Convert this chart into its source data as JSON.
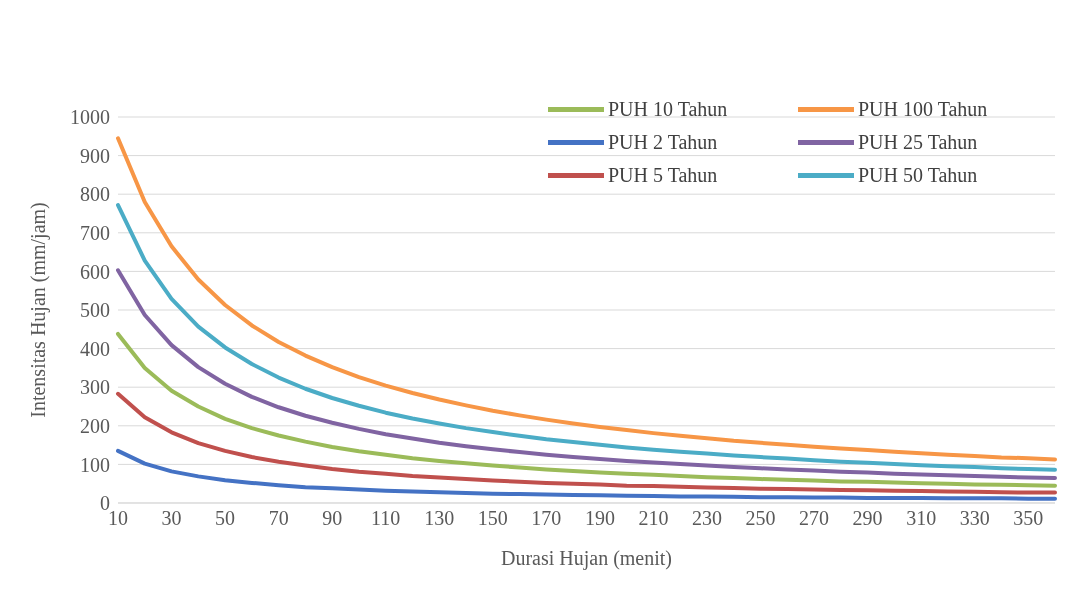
{
  "chart_data": {
    "type": "line",
    "xlabel": "Durasi Hujan (menit)",
    "ylabel": "Intensitas Hujan (mm/jam)",
    "categories": [
      "10",
      null,
      "30",
      null,
      "50",
      null,
      "70",
      null,
      "90",
      null,
      "110",
      null,
      "130",
      null,
      "150",
      null,
      "170",
      null,
      "190",
      null,
      "210",
      null,
      "230",
      null,
      "250",
      null,
      "270",
      null,
      "290",
      null,
      "310",
      null,
      "330",
      null,
      "350",
      null
    ],
    "ylim": [
      0,
      1000
    ],
    "yticks": [
      0,
      100,
      200,
      300,
      400,
      500,
      600,
      700,
      800,
      900,
      1000
    ],
    "grid": "y",
    "legend": "top right",
    "marker": "none",
    "line_style": "solid",
    "series": [
      {
        "name": "PUH 2 Tahun",
        "color": "#4472c4",
        "values": [
          135,
          102,
          82,
          69,
          59,
          52,
          46,
          41,
          38,
          35,
          32,
          30,
          28,
          26,
          24,
          23,
          22,
          21,
          20,
          19,
          18,
          17,
          17,
          16,
          15,
          15,
          14,
          14,
          13,
          13,
          13,
          12,
          12,
          12,
          11,
          11
        ]
      },
      {
        "name": "PUH 5 Tahun",
        "color": "#c0504d",
        "values": [
          283,
          222,
          183,
          155,
          135,
          119,
          107,
          97,
          88,
          81,
          76,
          70,
          66,
          62,
          58,
          55,
          52,
          50,
          48,
          45,
          44,
          42,
          40,
          39,
          37,
          36,
          35,
          34,
          33,
          32,
          31,
          30,
          29,
          28,
          27,
          27
        ]
      },
      {
        "name": "PUH 10 Tahun",
        "color": "#9bbb59",
        "values": [
          438,
          350,
          291,
          250,
          218,
          194,
          175,
          159,
          145,
          134,
          125,
          116,
          109,
          103,
          97,
          92,
          87,
          83,
          79,
          76,
          73,
          70,
          67,
          65,
          62,
          60,
          58,
          56,
          55,
          53,
          51,
          50,
          48,
          47,
          46,
          45
        ]
      },
      {
        "name": "PUH 25 Tahun",
        "color": "#8064a2",
        "values": [
          603,
          487,
          409,
          352,
          309,
          275,
          248,
          226,
          208,
          192,
          178,
          167,
          156,
          147,
          139,
          132,
          125,
          119,
          114,
          109,
          105,
          101,
          97,
          93,
          90,
          87,
          84,
          81,
          79,
          76,
          74,
          72,
          70,
          68,
          66,
          65
        ]
      },
      {
        "name": "PUH 50 Tahun",
        "color": "#4bacc6",
        "values": [
          772,
          628,
          529,
          457,
          403,
          360,
          325,
          296,
          272,
          252,
          234,
          219,
          206,
          194,
          184,
          174,
          165,
          158,
          151,
          144,
          138,
          133,
          128,
          123,
          119,
          115,
          111,
          107,
          104,
          101,
          98,
          95,
          93,
          90,
          88,
          86
        ]
      },
      {
        "name": "PUH 100 Tahun",
        "color": "#f79646",
        "values": [
          945,
          780,
          665,
          579,
          513,
          460,
          417,
          382,
          352,
          326,
          304,
          285,
          268,
          253,
          239,
          227,
          216,
          206,
          197,
          189,
          181,
          174,
          168,
          161,
          156,
          151,
          146,
          141,
          137,
          133,
          129,
          125,
          122,
          118,
          116,
          113
        ]
      }
    ]
  }
}
